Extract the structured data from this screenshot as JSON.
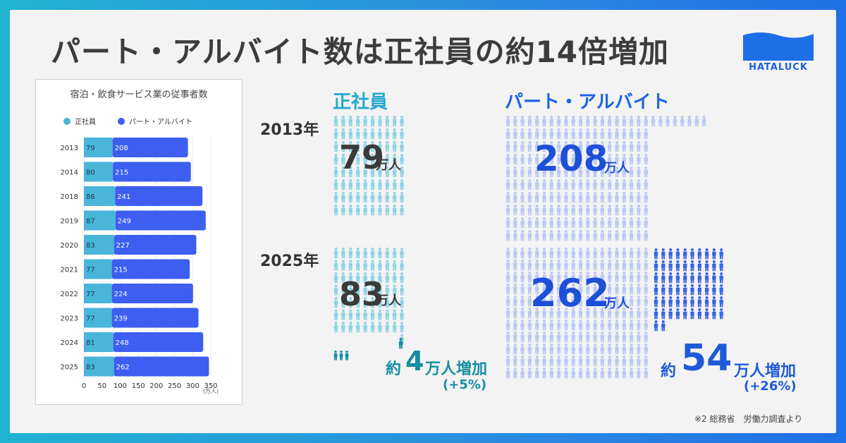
{
  "title": "パート・アルバイト数は正社員の約14倍増加",
  "logo": {
    "text": "HATALUCK"
  },
  "colors": {
    "seishain": "#48b5d9",
    "part": "#3d5ef0",
    "teal_dark": "#168ea0",
    "blue_dark": "#1e5ad8"
  },
  "chart_data": {
    "type": "bar",
    "orientation": "horizontal",
    "stacked": true,
    "title": "宿泊・飲食サービス業の従事者数",
    "categories": [
      "2013",
      "2014",
      "2018",
      "2019",
      "2020",
      "2021",
      "2022",
      "2023",
      "2024",
      "2025"
    ],
    "series": [
      {
        "name": "正社員",
        "values": [
          79,
          80,
          86,
          87,
          83,
          77,
          77,
          77,
          81,
          83
        ]
      },
      {
        "name": "パート・アルバイト",
        "values": [
          208,
          215,
          241,
          249,
          227,
          215,
          224,
          239,
          248,
          262
        ]
      }
    ],
    "xticks": [
      "0",
      "50",
      "100",
      "150",
      "200",
      "250",
      "300",
      "350"
    ],
    "xlim": [
      0,
      350
    ],
    "xunit": "(万人)",
    "legend": "top"
  },
  "infographic": {
    "seishain_title": "正社員",
    "part_title": "パート・アルバイト",
    "year_2013": "2013年",
    "year_2025": "2025年",
    "s2013_value": "79",
    "s2025_value": "83",
    "p2013_value": "208",
    "p2025_value": "262",
    "unit": "万人",
    "s_increase_prefix": "約",
    "s_increase_value": "4",
    "s_increase_suffix": "万人増加",
    "s_increase_pct": "(+5%)",
    "p_increase_prefix": "約",
    "p_increase_value": "54",
    "p_increase_suffix": "万人増加",
    "p_increase_pct": "(+26%)"
  },
  "source_note": "※2 総務省　労働力調査より"
}
